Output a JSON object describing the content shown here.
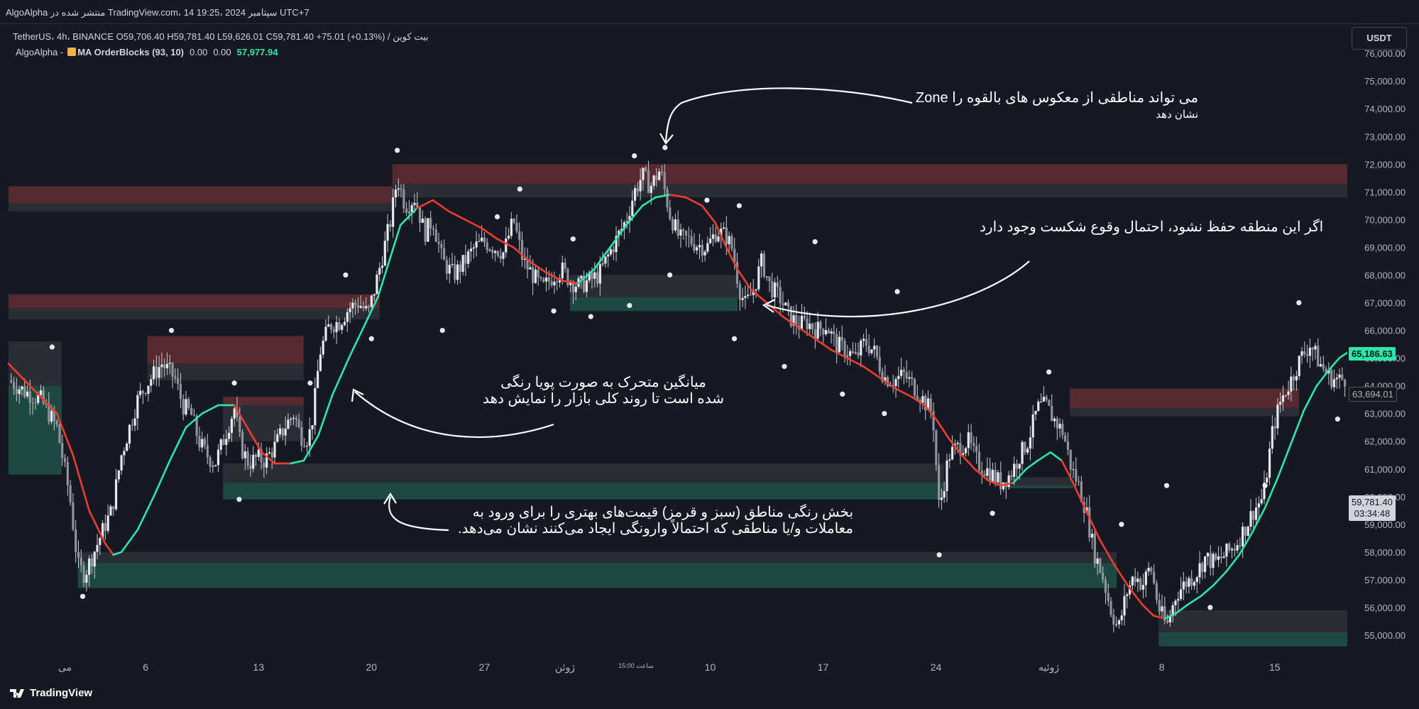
{
  "header": {
    "text": "AlgoAlpha منتشر شده در TradingView.com، 14 سپتامبر 2024 ،19:25 UTC+7"
  },
  "legend": {
    "symbol_line": "TetherUS، 4h، BINANCE O59,706.40 H59,781.40 L59,626.01 C59,781.40 +75.01 (+0.13%) / بیت کوین",
    "indicator_author": "AlgoAlpha -",
    "indicator_name": "MA OrderBlocks (93, 10)",
    "value1": "0.00",
    "value2": "0.00",
    "value3": "57,977.94"
  },
  "currency_button": "USDT",
  "price_labels": {
    "ma_value": "65,186.63",
    "secondary_value": "63,694.01",
    "last_price": "59,781.40",
    "countdown": "03:34:48"
  },
  "annotations": {
    "zone_line1": "می تواند مناطقی از معکوس های بالقوه را Zone",
    "zone_line2": "نشان دهد",
    "break_line": "اگر این منطقه حفظ نشود، احتمال وقوع شکست وجود دارد",
    "ma_line1": "میانگین متحرک به صورت پویا رنگی",
    "ma_line2": "شده است تا روند کلی بازار را نمایش دهد",
    "ob_line1": "بخش رنگی مناطق (سبز و قرمز) قیمت‌های بهتری را برای ورود به",
    "ob_line2": "معاملات و/یا مناطقی که احتمالاً وارونگی ایجاد می‌کنند نشان می‌دهد."
  },
  "footer": {
    "logo_text": "TradingView"
  },
  "colors": {
    "background": "#151924",
    "bullish": "#2ee6a8",
    "bearish": "#f23d2c",
    "bull_zone": "#1f4b45",
    "bear_zone": "#5b2a31",
    "zone_shadow": "#2c3039",
    "candle": "#c9cbd1"
  },
  "chart_data": {
    "type": "candlestick",
    "symbol": "BTCUSDT",
    "exchange": "BINANCE",
    "timeframe": "4h",
    "y_range": [
      54500,
      76000
    ],
    "y_ticks": [
      55000,
      56000,
      57000,
      58000,
      59000,
      60000,
      61000,
      62000,
      63000,
      64000,
      65000,
      66000,
      67000,
      68000,
      69000,
      70000,
      71000,
      72000,
      73000,
      74000,
      75000,
      76000
    ],
    "y_tick_labels": [
      "55,000.00",
      "56,000.00",
      "57,000.00",
      "58,000.00",
      "59,000.00",
      "60,000.00",
      "61,000.00",
      "62,000.00",
      "63,000.00",
      "64,000.00",
      "65,000.00",
      "66,000.00",
      "67,000.00",
      "68,000.00",
      "69,000.00",
      "70,000.00",
      "71,000.00",
      "72,000.00",
      "73,000.00",
      "74,000.00",
      "75,000.00",
      "76,000.00"
    ],
    "x_labels": [
      {
        "label": "می",
        "day": 0
      },
      {
        "label": "6",
        "day": 5
      },
      {
        "label": "13",
        "day": 12
      },
      {
        "label": "20",
        "day": 19
      },
      {
        "label": "27",
        "day": 26
      },
      {
        "label": "ژوئن",
        "day": 31
      },
      {
        "label": "ساعت 15:00",
        "day": 35.4
      },
      {
        "label": "10",
        "day": 40
      },
      {
        "label": "17",
        "day": 47
      },
      {
        "label": "24",
        "day": 54
      },
      {
        "label": "ژوئیه",
        "day": 61
      },
      {
        "label": "8",
        "day": 68
      },
      {
        "label": "15",
        "day": 75
      }
    ],
    "x_range_days": [
      -3.5,
      79.5
    ],
    "price_path": [
      [
        -3.5,
        64200
      ],
      [
        -2.5,
        63800
      ],
      [
        -1.5,
        63500
      ],
      [
        -0.5,
        62500
      ],
      [
        0.3,
        60000
      ],
      [
        0.8,
        57500
      ],
      [
        1.2,
        57200
      ],
      [
        1.8,
        58000
      ],
      [
        2.5,
        59000
      ],
      [
        2.9,
        59500
      ],
      [
        3.5,
        61500
      ],
      [
        4,
        62500
      ],
      [
        4.5,
        63500
      ],
      [
        5,
        64000
      ],
      [
        5.6,
        64500
      ],
      [
        6,
        64800
      ],
      [
        6.8,
        64300
      ],
      [
        7.3,
        63300
      ],
      [
        7.8,
        63000
      ],
      [
        8.3,
        62000
      ],
      [
        8.8,
        61500
      ],
      [
        9.3,
        61200
      ],
      [
        9.8,
        62000
      ],
      [
        10.5,
        63200
      ],
      [
        10.9,
        61800
      ],
      [
        11.4,
        61200
      ],
      [
        11.9,
        61400
      ],
      [
        12.4,
        61300
      ],
      [
        13,
        61800
      ],
      [
        13.6,
        62500
      ],
      [
        14.2,
        63000
      ],
      [
        14.6,
        62200
      ],
      [
        15.1,
        62100
      ],
      [
        15.4,
        63000
      ],
      [
        15.8,
        65200
      ],
      [
        16.4,
        66200
      ],
      [
        17,
        66300
      ],
      [
        17.6,
        66800
      ],
      [
        18.2,
        67000
      ],
      [
        18.8,
        66600
      ],
      [
        19.4,
        68000
      ],
      [
        20.2,
        70000
      ],
      [
        20.6,
        71500
      ],
      [
        21.1,
        70500
      ],
      [
        21.7,
        70800
      ],
      [
        22.3,
        69500
      ],
      [
        22.8,
        70000
      ],
      [
        23.4,
        68500
      ],
      [
        24.1,
        68000
      ],
      [
        24.8,
        68500
      ],
      [
        25.4,
        69000
      ],
      [
        26,
        69200
      ],
      [
        26.6,
        69000
      ],
      [
        27.2,
        68800
      ],
      [
        27.8,
        70000
      ],
      [
        28.4,
        68500
      ],
      [
        29,
        68000
      ],
      [
        29.6,
        67500
      ],
      [
        30.3,
        68000
      ],
      [
        30.8,
        68200
      ],
      [
        31.3,
        67800
      ],
      [
        31.9,
        67600
      ],
      [
        32.5,
        67800
      ],
      [
        33.1,
        68000
      ],
      [
        33.6,
        68600
      ],
      [
        34.2,
        69300
      ],
      [
        34.8,
        70000
      ],
      [
        35.3,
        71000
      ],
      [
        35.8,
        71600
      ],
      [
        36.3,
        71200
      ],
      [
        36.9,
        71800
      ],
      [
        37.5,
        70200
      ],
      [
        38.1,
        69300
      ],
      [
        38.6,
        69300
      ],
      [
        39.2,
        69100
      ],
      [
        39.8,
        69000
      ],
      [
        40.4,
        69600
      ],
      [
        41,
        69400
      ],
      [
        41.4,
        68900
      ],
      [
        41.8,
        67500
      ],
      [
        42.2,
        66900
      ],
      [
        42.7,
        67500
      ],
      [
        43.2,
        68500
      ],
      [
        43.7,
        67600
      ],
      [
        44.3,
        67200
      ],
      [
        44.9,
        66500
      ],
      [
        45.5,
        66200
      ],
      [
        46,
        66300
      ],
      [
        46.6,
        66000
      ],
      [
        47.2,
        66200
      ],
      [
        47.8,
        65500
      ],
      [
        48.4,
        65300
      ],
      [
        49,
        65000
      ],
      [
        49.6,
        65600
      ],
      [
        50.2,
        65200
      ],
      [
        50.8,
        64300
      ],
      [
        51.4,
        64200
      ],
      [
        52,
        64400
      ],
      [
        52.6,
        64000
      ],
      [
        53.2,
        63500
      ],
      [
        53.8,
        63000
      ],
      [
        54.2,
        59500
      ],
      [
        54.8,
        61500
      ],
      [
        55.4,
        61800
      ],
      [
        56,
        62000
      ],
      [
        56.6,
        61200
      ],
      [
        57.3,
        60900
      ],
      [
        58,
        60500
      ],
      [
        58.6,
        60800
      ],
      [
        59.2,
        61500
      ],
      [
        59.7,
        62000
      ],
      [
        60.3,
        63200
      ],
      [
        60.8,
        63300
      ],
      [
        61.3,
        62800
      ],
      [
        61.9,
        62300
      ],
      [
        62.4,
        61000
      ],
      [
        62.8,
        60500
      ],
      [
        63.3,
        59500
      ],
      [
        63.8,
        58000
      ],
      [
        64.3,
        57200
      ],
      [
        64.8,
        56000
      ],
      [
        65.3,
        55200
      ],
      [
        65.8,
        56500
      ],
      [
        66.3,
        57200
      ],
      [
        66.8,
        56800
      ],
      [
        67.3,
        57500
      ],
      [
        67.8,
        56000
      ],
      [
        68.3,
        55300
      ],
      [
        68.9,
        56500
      ],
      [
        69.5,
        56900
      ],
      [
        70.1,
        57200
      ],
      [
        70.7,
        57800
      ],
      [
        71.3,
        57600
      ],
      [
        71.9,
        57900
      ],
      [
        72.5,
        58200
      ],
      [
        73.1,
        58800
      ],
      [
        73.7,
        59500
      ],
      [
        74.3,
        60000
      ],
      [
        74.9,
        62500
      ],
      [
        75.4,
        63500
      ],
      [
        76,
        64200
      ],
      [
        76.6,
        65000
      ],
      [
        77.2,
        65500
      ],
      [
        77.8,
        64800
      ],
      [
        78.4,
        64300
      ],
      [
        79,
        64200
      ],
      [
        79.5,
        64300
      ]
    ],
    "ma_path": [
      [
        -3.5,
        64800
      ],
      [
        -2.5,
        64200
      ],
      [
        -1.5,
        63600
      ],
      [
        -0.5,
        63000
      ],
      [
        0.5,
        61500
      ],
      [
        1.5,
        59500
      ],
      [
        2.5,
        58300
      ],
      [
        3,
        57900
      ],
      [
        3.5,
        58000
      ],
      [
        4.5,
        58800
      ],
      [
        5.5,
        60000
      ],
      [
        6.5,
        61300
      ],
      [
        7.5,
        62500
      ],
      [
        8.5,
        63000
      ],
      [
        9.5,
        63300
      ],
      [
        10.5,
        63300
      ],
      [
        11.3,
        62500
      ],
      [
        12.2,
        61600
      ],
      [
        13,
        61200
      ],
      [
        14,
        61200
      ],
      [
        14.8,
        61300
      ],
      [
        15.7,
        62200
      ],
      [
        16.6,
        63700
      ],
      [
        17.6,
        65000
      ],
      [
        18.5,
        66100
      ],
      [
        19.4,
        67200
      ],
      [
        20.1,
        68500
      ],
      [
        20.8,
        69800
      ],
      [
        21.8,
        70400
      ],
      [
        22.8,
        70700
      ],
      [
        23.8,
        70300
      ],
      [
        24.8,
        70000
      ],
      [
        25.8,
        69700
      ],
      [
        26.8,
        69300
      ],
      [
        27.8,
        69000
      ],
      [
        28.8,
        68500
      ],
      [
        29.8,
        68100
      ],
      [
        30.8,
        67800
      ],
      [
        31.8,
        67700
      ],
      [
        32.8,
        68200
      ],
      [
        33.8,
        69000
      ],
      [
        34.8,
        69800
      ],
      [
        35.8,
        70500
      ],
      [
        36.6,
        70800
      ],
      [
        37.5,
        70900
      ],
      [
        38.5,
        70800
      ],
      [
        39.5,
        70500
      ],
      [
        40.3,
        69900
      ],
      [
        41,
        69000
      ],
      [
        41.7,
        68200
      ],
      [
        42.5,
        67500
      ],
      [
        43.5,
        67000
      ],
      [
        44.5,
        66500
      ],
      [
        45.5,
        66100
      ],
      [
        46.5,
        65700
      ],
      [
        47.5,
        65300
      ],
      [
        48.5,
        65000
      ],
      [
        49.5,
        64700
      ],
      [
        50.5,
        64300
      ],
      [
        51.5,
        63900
      ],
      [
        52.5,
        63600
      ],
      [
        53.3,
        63300
      ],
      [
        54,
        62800
      ],
      [
        54.8,
        62100
      ],
      [
        55.6,
        61500
      ],
      [
        56.4,
        61000
      ],
      [
        57.2,
        60600
      ],
      [
        58,
        60400
      ],
      [
        58.8,
        60500
      ],
      [
        59.6,
        61000
      ],
      [
        60.3,
        61300
      ],
      [
        61.1,
        61600
      ],
      [
        61.8,
        61300
      ],
      [
        62.5,
        60500
      ],
      [
        63.3,
        59500
      ],
      [
        64.2,
        58400
      ],
      [
        65.1,
        57500
      ],
      [
        66,
        56700
      ],
      [
        66.8,
        56100
      ],
      [
        67.5,
        55700
      ],
      [
        68.2,
        55600
      ],
      [
        68.9,
        55800
      ],
      [
        69.6,
        56100
      ],
      [
        70.4,
        56400
      ],
      [
        71.2,
        56800
      ],
      [
        72,
        57300
      ],
      [
        72.8,
        57900
      ],
      [
        73.6,
        58700
      ],
      [
        74.4,
        59600
      ],
      [
        75.2,
        60700
      ],
      [
        76,
        61900
      ],
      [
        76.8,
        63100
      ],
      [
        77.6,
        64000
      ],
      [
        78.4,
        64600
      ],
      [
        79,
        65000
      ],
      [
        79.5,
        65200
      ]
    ],
    "ma_bull_segments": [
      [
        3,
        10.5
      ],
      [
        14,
        21.5
      ],
      [
        32.3,
        37.5
      ],
      [
        58.5,
        61.8
      ],
      [
        68,
        79.5
      ]
    ],
    "order_blocks": [
      {
        "type": "bearish",
        "x0": -3.5,
        "x1": 20.3,
        "top": 71.2,
        "mid": 70.6,
        "bottom": 70.3
      },
      {
        "type": "bearish",
        "x0": -3.5,
        "x1": 19.5,
        "top": 67.3,
        "mid": 66.8,
        "bottom": 66.4
      },
      {
        "type": "bearish",
        "x0": 5.1,
        "x1": 14.8,
        "top": 65.8,
        "mid": 64.8,
        "bottom": 64.2
      },
      {
        "type": "bearish",
        "x0": 9.8,
        "x1": 14.8,
        "top": 63.6,
        "mid": 63.3,
        "bottom": 62.0
      },
      {
        "type": "bearish",
        "x0": 20.3,
        "x1": 79.5,
        "top": 72.0,
        "mid": 71.3,
        "bottom": 70.8
      },
      {
        "type": "bearish",
        "x0": 62.3,
        "x1": 76.5,
        "top": 63.9,
        "mid": 63.2,
        "bottom": 62.9
      },
      {
        "type": "bullish",
        "x0": -3.5,
        "x1": -0.2,
        "top": 65.6,
        "mid": 64.0,
        "bottom": 60.8
      },
      {
        "type": "bullish",
        "x0": 9.8,
        "x1": 54.5,
        "top": 61.2,
        "mid": 60.5,
        "bottom": 59.9
      },
      {
        "type": "bullish",
        "x0": 0.8,
        "x1": 65.2,
        "top": 58.0,
        "mid": 57.6,
        "bottom": 56.7
      },
      {
        "type": "bullish",
        "x0": 31.3,
        "x1": 41.7,
        "top": 68.0,
        "mid": 67.2,
        "bottom": 66.7
      },
      {
        "type": "bullish",
        "x0": 58.5,
        "x1": 62.5,
        "top": 60.7,
        "mid": 60.4,
        "bottom": 60.3
      },
      {
        "type": "bullish",
        "x0": 67.8,
        "x1": 79.5,
        "top": 55.9,
        "mid": 55.1,
        "bottom": 54.6
      }
    ],
    "pivot_dots": [
      [
        -0.8,
        65.4
      ],
      [
        1.1,
        56.4
      ],
      [
        6.6,
        66.0
      ],
      [
        10.5,
        64.1
      ],
      [
        10.8,
        59.9
      ],
      [
        15.2,
        64.1
      ],
      [
        17.4,
        68.0
      ],
      [
        19.0,
        65.7
      ],
      [
        20.6,
        72.5
      ],
      [
        23.4,
        66.0
      ],
      [
        26.8,
        70.1
      ],
      [
        28.2,
        71.1
      ],
      [
        30.3,
        66.7
      ],
      [
        31.5,
        69.3
      ],
      [
        32.6,
        66.5
      ],
      [
        35.0,
        66.9
      ],
      [
        35.3,
        72.3
      ],
      [
        37.2,
        72.6
      ],
      [
        37.5,
        68.0
      ],
      [
        39.8,
        70.7
      ],
      [
        41.5,
        65.7
      ],
      [
        41.8,
        70.5
      ],
      [
        44.6,
        64.7
      ],
      [
        46.5,
        69.2
      ],
      [
        48.2,
        63.7
      ],
      [
        50.8,
        63.0
      ],
      [
        51.6,
        67.4
      ],
      [
        54.2,
        57.9
      ],
      [
        57.5,
        59.4
      ],
      [
        61.0,
        64.5
      ],
      [
        65.5,
        59.0
      ],
      [
        68.3,
        60.4
      ],
      [
        71.0,
        56.0
      ],
      [
        74.4,
        60.4
      ],
      [
        76.5,
        67.0
      ],
      [
        78.9,
        62.8
      ]
    ]
  }
}
